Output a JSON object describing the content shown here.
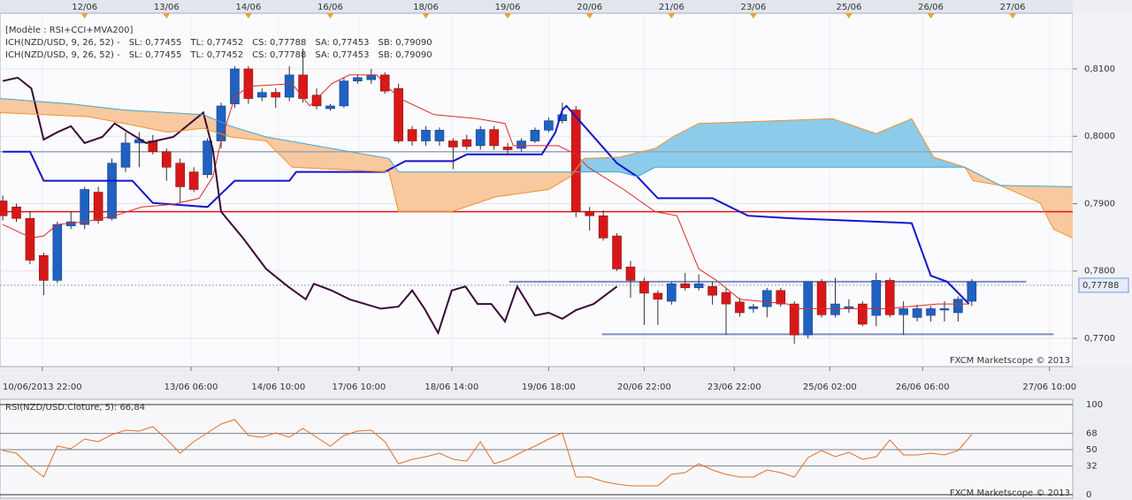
{
  "chart_data": [
    {
      "type": "candlestick",
      "legend_title": "[Modèle : RSI+CCI+MVA200]",
      "legend_rows": [
        [
          {
            "text": "ICH(NZD/USD, 9, 26, 52) -",
            "color": "#d81c1c"
          },
          {
            "text": "SL: 0,77455",
            "color": "#d81c1c"
          },
          {
            "text": "TL: 0,77452",
            "color": "#1414cc"
          },
          {
            "text": "CS: 0,77788",
            "color": "#3a0838"
          },
          {
            "text": "SA: 0,77453",
            "color": "#f0922e"
          },
          {
            "text": "SB: 0,79090",
            "color": "#3ea6cf"
          }
        ],
        [
          {
            "text": "ICH(NZD/USD, 9, 26, 52) -",
            "color": "#d81c1c"
          },
          {
            "text": "SL: 0,77455",
            "color": "#d81c1c"
          },
          {
            "text": "TL: 0,77452",
            "color": "#1414cc"
          },
          {
            "text": "CS: 0,77788",
            "color": "#3a0838"
          },
          {
            "text": "SA: 0,77453",
            "color": "#f0922e"
          },
          {
            "text": "SB: 0,79090",
            "color": "#3ea6cf"
          }
        ]
      ],
      "watermark": "FXCM Marketscope © 2013",
      "xlim": [
        -0.2,
        78.4
      ],
      "date_ticks": [
        {
          "value": 6,
          "label": "12/06"
        },
        {
          "value": 12,
          "label": "13/06"
        },
        {
          "value": 18,
          "label": "14/06"
        },
        {
          "value": 24,
          "label": "16/06"
        },
        {
          "value": 31,
          "label": "18/06"
        },
        {
          "value": 37,
          "label": "19/06"
        },
        {
          "value": 43,
          "label": "20/06"
        },
        {
          "value": 49,
          "label": "21/06"
        },
        {
          "value": 55,
          "label": "23/06"
        },
        {
          "value": 62,
          "label": "25/06"
        },
        {
          "value": 68,
          "label": "26/06"
        },
        {
          "value": 74,
          "label": "27/06"
        }
      ],
      "time_ticks": [
        {
          "value": 2.9,
          "label": "10/06/2013 22:00"
        },
        {
          "value": 13.8,
          "label": "13/06 06:00"
        },
        {
          "value": 20.2,
          "label": "14/06 10:00"
        },
        {
          "value": 26.1,
          "label": "17/06 10:00"
        },
        {
          "value": 32.9,
          "label": "18/06 14:00"
        },
        {
          "value": 40,
          "label": "19/06 18:00"
        },
        {
          "value": 47,
          "label": "20/06 22:00"
        },
        {
          "value": 53.6,
          "label": "23/06 22:00"
        },
        {
          "value": 60.6,
          "label": "25/06 02:00"
        },
        {
          "value": 67.4,
          "label": "26/06 06:00"
        },
        {
          "value": 76.7,
          "label": "27/06 10:00"
        }
      ],
      "ylim": [
        0.7658,
        0.81826
      ],
      "yticks": [
        {
          "value": 0.77,
          "label": "0,7700"
        },
        {
          "value": 0.78,
          "label": "0,7800"
        },
        {
          "value": 0.79,
          "label": "0,7900"
        },
        {
          "value": 0.8,
          "label": "0,8000"
        },
        {
          "value": 0.81,
          "label": "0,8100"
        }
      ],
      "grid": true,
      "up_color": "#1f62c0",
      "down_color": "#d81818",
      "open": [
        0.7904,
        0.7895,
        0.7878,
        0.7823,
        0.7786,
        0.7867,
        0.7869,
        0.7917,
        0.7878,
        0.7954,
        0.799,
        0.7993,
        0.7977,
        0.796,
        0.7947,
        0.7943,
        0.7993,
        0.8048,
        0.81,
        0.8058,
        0.8065,
        0.8058,
        0.8091,
        0.8061,
        0.8041,
        0.8045,
        0.8082,
        0.8084,
        0.8091,
        0.8071,
        0.801,
        0.7993,
        0.7993,
        0.7993,
        0.7995,
        0.7986,
        0.801,
        0.7984,
        0.7982,
        0.7993,
        0.8009,
        0.8023,
        0.8039,
        0.7888,
        0.7882,
        0.7852,
        0.7806,
        0.7784,
        0.7767,
        0.7755,
        0.7781,
        0.7775,
        0.7777,
        0.7768,
        0.7754,
        0.7744,
        0.7747,
        0.7771,
        0.7751,
        0.7705,
        0.7784,
        0.7735,
        0.7744,
        0.7751,
        0.7734,
        0.7786,
        0.7735,
        0.7731,
        0.7734,
        0.7742,
        0.7738,
        0.7755
      ],
      "high": [
        0.7912,
        0.79,
        0.7888,
        0.7827,
        0.7873,
        0.7888,
        0.7925,
        0.7925,
        0.7967,
        0.8006,
        0.8006,
        0.8002,
        0.7982,
        0.7967,
        0.7954,
        0.7997,
        0.805,
        0.8104,
        0.8104,
        0.8071,
        0.8071,
        0.8104,
        0.813,
        0.8071,
        0.8048,
        0.8087,
        0.8091,
        0.81,
        0.8095,
        0.8078,
        0.8015,
        0.8015,
        0.8013,
        0.7997,
        0.8002,
        0.8015,
        0.8015,
        0.799,
        0.7997,
        0.8013,
        0.8028,
        0.805,
        0.8045,
        0.7895,
        0.789,
        0.7856,
        0.7815,
        0.779,
        0.7771,
        0.7784,
        0.7797,
        0.7795,
        0.7784,
        0.7775,
        0.776,
        0.7751,
        0.7775,
        0.7775,
        0.7755,
        0.7784,
        0.7788,
        0.779,
        0.7758,
        0.7755,
        0.7797,
        0.779,
        0.7755,
        0.775,
        0.7748,
        0.7755,
        0.7762,
        0.7788
      ],
      "low": [
        0.7875,
        0.7873,
        0.781,
        0.7764,
        0.7782,
        0.7862,
        0.7862,
        0.787,
        0.7875,
        0.7947,
        0.7954,
        0.7973,
        0.7934,
        0.7901,
        0.7917,
        0.7938,
        0.7982,
        0.8042,
        0.8048,
        0.8052,
        0.8042,
        0.8052,
        0.805,
        0.804,
        0.8038,
        0.8042,
        0.8078,
        0.8078,
        0.8063,
        0.799,
        0.7986,
        0.7986,
        0.7986,
        0.7951,
        0.798,
        0.798,
        0.798,
        0.7973,
        0.7977,
        0.799,
        0.8006,
        0.8019,
        0.788,
        0.786,
        0.7845,
        0.78,
        0.776,
        0.772,
        0.772,
        0.775,
        0.7771,
        0.7771,
        0.775,
        0.7705,
        0.7732,
        0.7738,
        0.7731,
        0.7747,
        0.7692,
        0.77,
        0.7731,
        0.7731,
        0.7738,
        0.7718,
        0.7718,
        0.7731,
        0.7705,
        0.7725,
        0.7725,
        0.7725,
        0.7725,
        0.7748
      ],
      "close": [
        0.7882,
        0.7878,
        0.7816,
        0.7786,
        0.7869,
        0.7873,
        0.7921,
        0.7875,
        0.796,
        0.799,
        0.7995,
        0.7977,
        0.7954,
        0.7925,
        0.7921,
        0.7993,
        0.8045,
        0.81,
        0.8056,
        0.8065,
        0.8058,
        0.8091,
        0.8056,
        0.8045,
        0.8045,
        0.8082,
        0.8087,
        0.8091,
        0.8067,
        0.7993,
        0.7993,
        0.8009,
        0.8009,
        0.7984,
        0.7985,
        0.801,
        0.7986,
        0.798,
        0.7993,
        0.8009,
        0.8023,
        0.8032,
        0.7888,
        0.7882,
        0.7849,
        0.7803,
        0.7786,
        0.7767,
        0.7758,
        0.7781,
        0.7775,
        0.7781,
        0.7764,
        0.7751,
        0.7738,
        0.7747,
        0.7771,
        0.7751,
        0.7705,
        0.7784,
        0.7735,
        0.7751,
        0.7747,
        0.7721,
        0.7786,
        0.7735,
        0.7744,
        0.7744,
        0.7744,
        0.7744,
        0.7758,
        0.7784
      ],
      "lines": [
        {
          "color": "#1414cc",
          "width": 2,
          "x": [
            0,
            2,
            3,
            9.5,
            11,
            15,
            17,
            21,
            21.5,
            28,
            29.5,
            33,
            34,
            39.5,
            40.5,
            41,
            41.3,
            45,
            46.5,
            48,
            52,
            54.6,
            58,
            66.6,
            68,
            69.2,
            70.8
          ],
          "values": [
            0.7977,
            0.7977,
            0.7934,
            0.7934,
            0.7901,
            0.7895,
            0.7934,
            0.7934,
            0.7947,
            0.7947,
            0.7963,
            0.7963,
            0.7973,
            0.7973,
            0.8006,
            0.8039,
            0.8045,
            0.796,
            0.794,
            0.7908,
            0.7908,
            0.7882,
            0.7878,
            0.7871,
            0.7793,
            0.7784,
            0.7751
          ]
        },
        {
          "color": "#e02828",
          "width": 1,
          "x": [
            0,
            2.1,
            3,
            4,
            6,
            8.2,
            10.2,
            12.5,
            14.4,
            15.4,
            16,
            17,
            18,
            21.2,
            22.5,
            24.1,
            25.4,
            27.4,
            28.3,
            29.3,
            31.6,
            34.8,
            36.8,
            37.4,
            40.7,
            42,
            42.9,
            45.5,
            47.8,
            49.4,
            51,
            52.3,
            54,
            57.5,
            58.2,
            64.7,
            68.5,
            70.8
          ],
          "values": [
            0.7869,
            0.7849,
            0.7852,
            0.7869,
            0.7873,
            0.7882,
            0.7895,
            0.7899,
            0.7908,
            0.794,
            0.7993,
            0.8058,
            0.8074,
            0.8078,
            0.8045,
            0.8078,
            0.8091,
            0.8091,
            0.8071,
            0.8054,
            0.8032,
            0.8026,
            0.8019,
            0.7986,
            0.7986,
            0.7973,
            0.7954,
            0.7921,
            0.7888,
            0.7882,
            0.7803,
            0.7786,
            0.7758,
            0.7751,
            0.7744,
            0.7744,
            0.7751,
            0.7751
          ]
        },
        {
          "color": "#3a0838",
          "width": 2,
          "x": [
            0,
            1.1,
            2.1,
            3,
            4,
            5,
            6,
            7.3,
            8.2,
            9.2,
            10.5,
            12.5,
            14.7,
            15.4,
            16,
            17.6,
            19.3,
            20.9,
            22.2,
            22.8,
            24.1,
            25.4,
            27.7,
            29,
            30,
            30.9,
            31.9,
            32.9,
            33.9,
            34.8,
            35.8,
            36.8,
            37.7,
            39,
            40,
            41,
            42,
            43.3,
            45
          ],
          "values": [
            0.8082,
            0.8087,
            0.8071,
            0.7995,
            0.8006,
            0.8015,
            0.799,
            0.7999,
            0.8019,
            0.8006,
            0.799,
            0.7999,
            0.8035,
            0.798,
            0.7888,
            0.7849,
            0.7803,
            0.7777,
            0.7758,
            0.7781,
            0.7771,
            0.7758,
            0.7744,
            0.7747,
            0.7771,
            0.7744,
            0.7708,
            0.7771,
            0.7777,
            0.7751,
            0.7751,
            0.7725,
            0.7777,
            0.7734,
            0.7738,
            0.7729,
            0.7742,
            0.7751,
            0.7777
          ]
        },
        {
          "color": "#f0922e",
          "width": 1,
          "x": [
            -0.2,
            6.3,
            8.9,
            12.1,
            14.7,
            16.7,
            19.3,
            21.2,
            28.3,
            29,
            32.9,
            36.1,
            40,
            41.6,
            42.6,
            45.2,
            47.8,
            49.1,
            51,
            60.8,
            64,
            66.6,
            68.2,
            70.5,
            71.1,
            73.1,
            76,
            77,
            78.4
          ],
          "values": [
            0.8035,
            0.8029,
            0.8019,
            0.8006,
            0.8012,
            0.7999,
            0.7993,
            0.7954,
            0.7947,
            0.7888,
            0.7888,
            0.791,
            0.7921,
            0.794,
            0.7967,
            0.7969,
            0.7982,
            0.7999,
            0.8019,
            0.8026,
            0.8004,
            0.8026,
            0.7969,
            0.7954,
            0.7934,
            0.7927,
            0.7901,
            0.7862,
            0.7849
          ]
        },
        {
          "color": "#3ea6cf",
          "width": 1,
          "x": [
            -0.2,
            5,
            8.9,
            14.7,
            16.7,
            19.3,
            28.3,
            29,
            45.2,
            46.5,
            47.8,
            70.5,
            73.1,
            78.4
          ],
          "values": [
            0.8056,
            0.8048,
            0.8039,
            0.8032,
            0.8015,
            0.7999,
            0.7967,
            0.7947,
            0.7947,
            0.794,
            0.7954,
            0.7954,
            0.7927,
            0.7925
          ]
        }
      ],
      "cloud_colors": [
        "#8ccbea",
        "#f8c99e"
      ],
      "hlines": [
        {
          "value": 0.7888,
          "color": "#d81818"
        },
        {
          "value": 0.7977,
          "color": "#9aa6b4"
        }
      ],
      "segments": [
        {
          "x": [
            37.1,
            75
          ],
          "value": 0.7784
        },
        {
          "x": [
            43.9,
            77
          ],
          "value": 0.7706
        }
      ],
      "segment_color": "#7f8cc0",
      "last_price": {
        "value": 0.77788,
        "label": "0,77788"
      }
    },
    {
      "type": "line",
      "title": "RSI(NZD/USD.Cloture, 5): 66,84",
      "watermark": "FXCM Marketscope © 2013",
      "xlim": [
        -0.2,
        78.4
      ],
      "ylim": [
        0,
        100
      ],
      "yticks": [
        0,
        32,
        50,
        68,
        100
      ],
      "color": "#e0702a",
      "values": [
        49.0,
        46.1,
        31.4,
        19.6,
        53.9,
        51.0,
        61.8,
        58.8,
        66.7,
        71.6,
        70.6,
        75.5,
        61.8,
        46.1,
        58.8,
        68.6,
        78.4,
        83.3,
        65.7,
        63.7,
        68.6,
        63.7,
        73.5,
        63.7,
        53.9,
        65.7,
        70.6,
        71.6,
        58.8,
        34.3,
        39.2,
        42.2,
        46.1,
        39.2,
        37.3,
        58.8,
        34.3,
        39.2,
        47.1,
        53.9,
        61.8,
        68.6,
        19.6,
        19.6,
        14.7,
        11.8,
        9.8,
        9.8,
        9.8,
        22.5,
        24.5,
        34.3,
        27.5,
        22.5,
        19.6,
        19.6,
        27.5,
        24.5,
        19.6,
        41.2,
        49.0,
        42.2,
        47.1,
        39.2,
        42.2,
        60.8,
        44.1,
        44.1,
        46.1,
        44.1,
        49.0,
        66.84
      ]
    }
  ]
}
